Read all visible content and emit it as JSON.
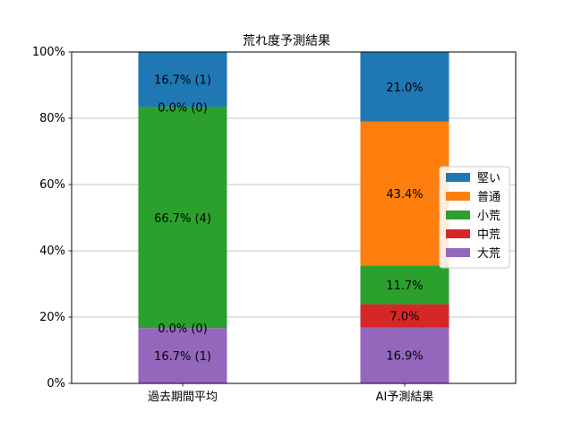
{
  "chart_data": {
    "type": "bar",
    "stacked": true,
    "title": "荒れ度予測結果",
    "xlabel": "",
    "ylabel": "",
    "ylim": [
      0,
      100
    ],
    "yticks": [
      "0%",
      "20%",
      "40%",
      "60%",
      "80%",
      "100%"
    ],
    "grid": "horizontal",
    "legend_position": "right",
    "categories": [
      "過去期間平均",
      "AI予測結果"
    ],
    "series": [
      {
        "name": "大荒",
        "color": "#9467bd",
        "values": [
          16.7,
          16.9
        ],
        "labels": [
          "16.7% (1)",
          "16.9%"
        ]
      },
      {
        "name": "中荒",
        "color": "#d62728",
        "values": [
          0.0,
          7.0
        ],
        "labels": [
          "0.0% (0)",
          "7.0%"
        ]
      },
      {
        "name": "小荒",
        "color": "#2ca02c",
        "values": [
          66.7,
          11.7
        ],
        "labels": [
          "66.7% (4)",
          "11.7%"
        ]
      },
      {
        "name": "普通",
        "color": "#ff7f0e",
        "values": [
          0.0,
          43.4
        ],
        "labels": [
          "0.0% (0)",
          "43.4%"
        ]
      },
      {
        "name": "堅い",
        "color": "#1f77b4",
        "values": [
          16.7,
          21.0
        ],
        "labels": [
          "16.7% (1)",
          "21.0%"
        ]
      }
    ],
    "legend_order": [
      "堅い",
      "普通",
      "小荒",
      "中荒",
      "大荒"
    ]
  }
}
